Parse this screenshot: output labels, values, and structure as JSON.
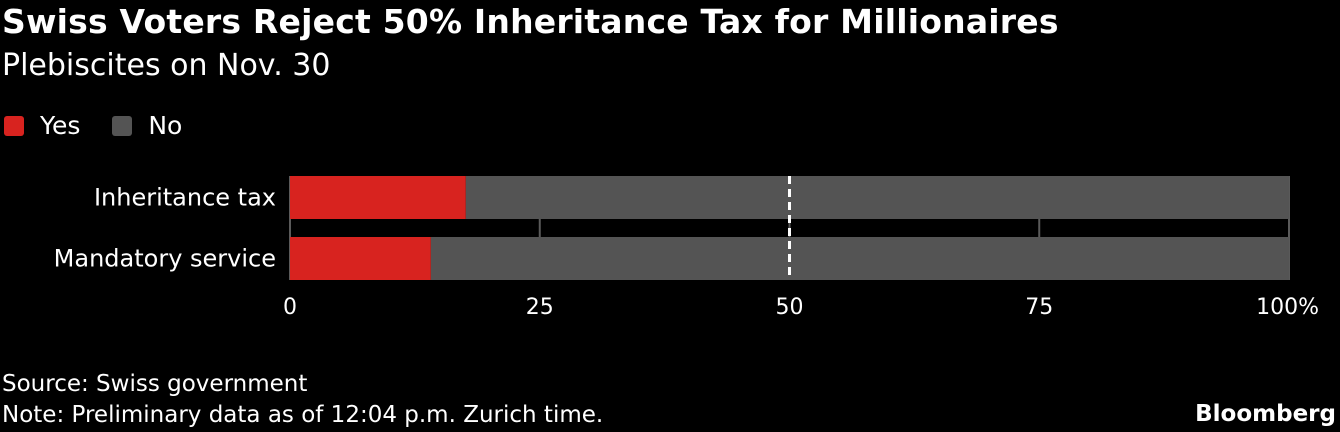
{
  "chart_data": {
    "type": "bar",
    "orientation": "horizontal",
    "stacked": true,
    "title": "Swiss Voters Reject 50% Inheritance Tax for Millionaires",
    "subtitle": "Plebiscites on Nov. 30",
    "categories": [
      "Inheritance tax",
      "Mandatory service"
    ],
    "series": [
      {
        "name": "Yes",
        "values": [
          17.6,
          14.1
        ],
        "color": "#d8231f"
      },
      {
        "name": "No",
        "values": [
          82.4,
          85.9
        ],
        "color": "#545454"
      }
    ],
    "xlim": [
      0,
      100
    ],
    "x_ticks": [
      0,
      25,
      50,
      75,
      100
    ],
    "x_tick_labels": [
      "0",
      "25",
      "50",
      "75",
      "100%"
    ],
    "reference_line": 50,
    "legend_position": "top-left",
    "grid": false
  },
  "footer": {
    "source": "Source: Swiss government",
    "note": "Note: Preliminary data as of 12:04 p.m. Zurich time.",
    "brand": "Bloomberg"
  }
}
